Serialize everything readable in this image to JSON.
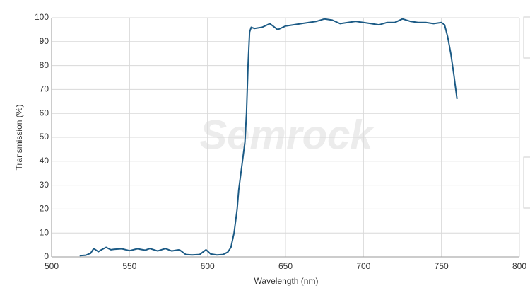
{
  "chart_data": {
    "type": "line",
    "xlabel": "Wavelength (nm)",
    "ylabel": "Transmission (%)",
    "watermark": "Semrock",
    "xlim": [
      500,
      800
    ],
    "xticks": [
      500,
      550,
      600,
      650,
      700,
      750,
      800
    ],
    "ylim": [
      0,
      100
    ],
    "yticks": [
      0,
      10,
      20,
      30,
      40,
      50,
      60,
      70,
      80,
      90,
      100
    ],
    "grid": true,
    "x": [
      518,
      522,
      525,
      527,
      530,
      532,
      535,
      538,
      540,
      545,
      550,
      555,
      560,
      563,
      568,
      573,
      577,
      580,
      582,
      586,
      590,
      595,
      599,
      602,
      606,
      610,
      613,
      615,
      617,
      619,
      620,
      622,
      624,
      625,
      626,
      627,
      628,
      630,
      635,
      640,
      643,
      645,
      650,
      655,
      660,
      665,
      670,
      675,
      680,
      685,
      690,
      695,
      700,
      705,
      710,
      715,
      720,
      725,
      730,
      735,
      740,
      745,
      750,
      752,
      754,
      756,
      758,
      760
    ],
    "series": [
      {
        "name": "Transmission",
        "color": "#1b5a85",
        "values": [
          0.5,
          0.7,
          1.5,
          3.5,
          2.2,
          3,
          4,
          3,
          3.2,
          3.4,
          2.6,
          3.4,
          2.8,
          3.5,
          2.5,
          3.5,
          2.5,
          2.8,
          3,
          1,
          0.8,
          1,
          3,
          1.2,
          0.8,
          1,
          2,
          4,
          10,
          20,
          28,
          38,
          48,
          60,
          80,
          94,
          96,
          95.5,
          96,
          97.5,
          96,
          95,
          96.5,
          97,
          97.5,
          98,
          98.5,
          99.5,
          99,
          97.5,
          98,
          98.5,
          98,
          97.5,
          97,
          98,
          98,
          99.5,
          98.5,
          98,
          98,
          97.5,
          98,
          97,
          92,
          85,
          76,
          66
        ]
      }
    ]
  }
}
